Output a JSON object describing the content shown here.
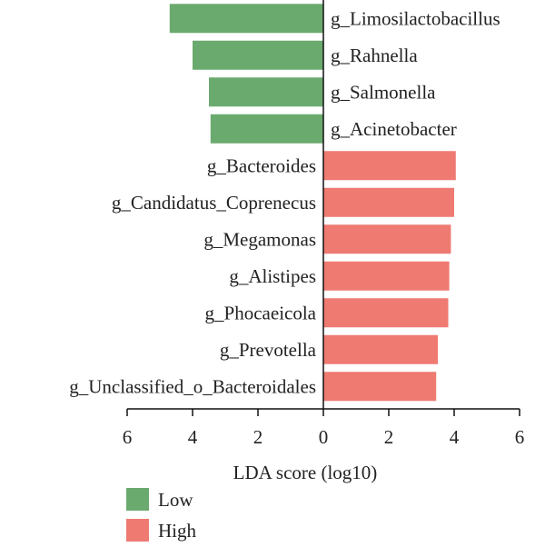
{
  "chart_data": {
    "type": "bar",
    "orientation": "horizontal",
    "xlabel": "LDA score (log10)",
    "xlim": [
      -6,
      6
    ],
    "xticks": [
      6,
      4,
      2,
      0,
      2,
      4,
      6
    ],
    "groups": [
      {
        "name": "Low",
        "color": "#6aaa6e"
      },
      {
        "name": "High",
        "color": "#ee7a72"
      }
    ],
    "bars": [
      {
        "category": "g_Limosilactobacillus",
        "group": "Low",
        "value": 4.7
      },
      {
        "category": "g_Rahnella",
        "group": "Low",
        "value": 4.0
      },
      {
        "category": "g_Salmonella",
        "group": "Low",
        "value": 3.5
      },
      {
        "category": "g_Acinetobacter",
        "group": "Low",
        "value": 3.45
      },
      {
        "category": "g_Bacteroides",
        "group": "High",
        "value": 4.05
      },
      {
        "category": "g_Candidatus_Coprenecus",
        "group": "High",
        "value": 4.0
      },
      {
        "category": "g_Megamonas",
        "group": "High",
        "value": 3.9
      },
      {
        "category": "g_Alistipes",
        "group": "High",
        "value": 3.85
      },
      {
        "category": "g_Phocaeicola",
        "group": "High",
        "value": 3.82
      },
      {
        "category": "g_Prevotella",
        "group": "High",
        "value": 3.5
      },
      {
        "category": "g_Unclassified_o_Bacteroidales",
        "group": "High",
        "value": 3.45
      }
    ],
    "legend_position": "bottom-left"
  }
}
